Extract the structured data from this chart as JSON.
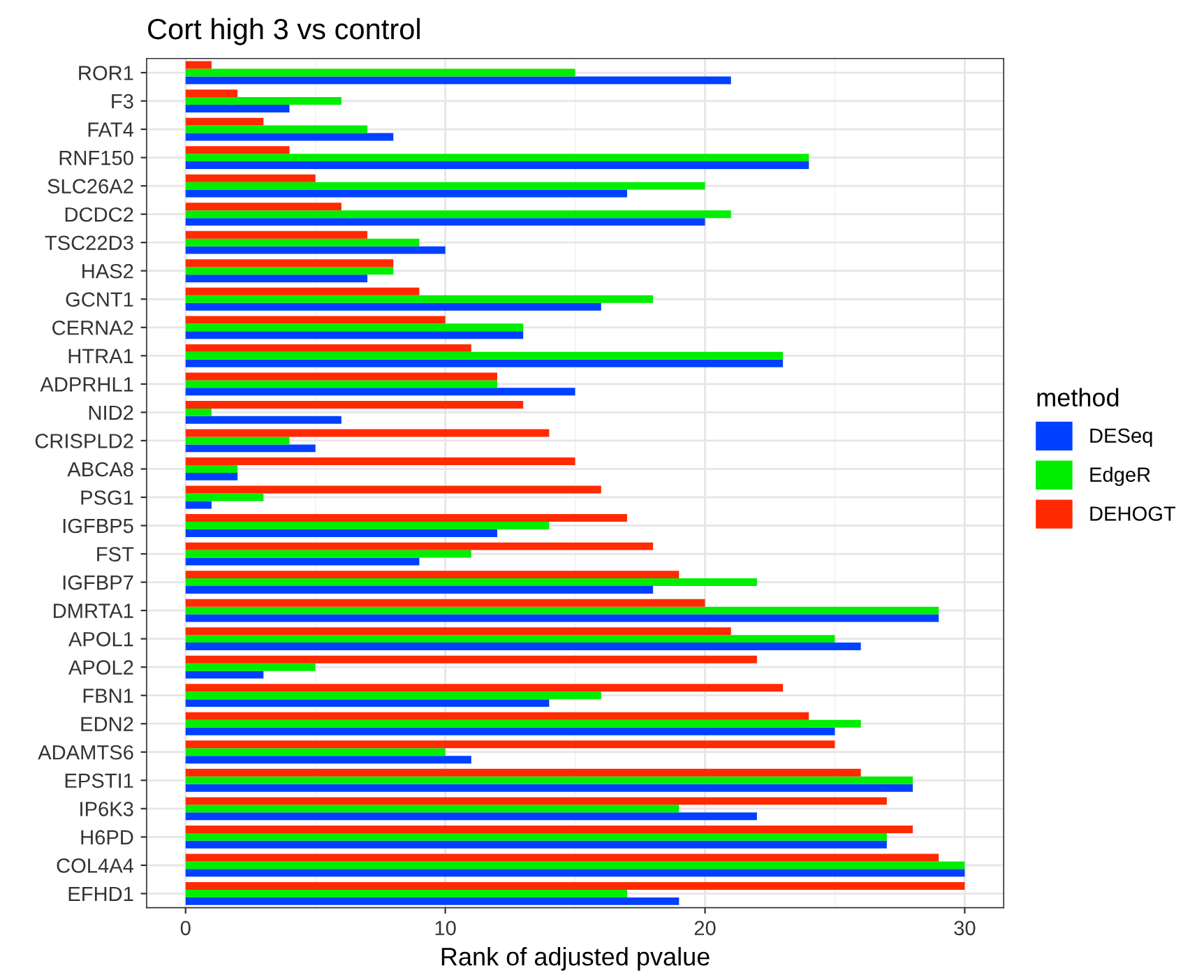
{
  "chart_data": {
    "type": "bar",
    "orientation": "horizontal",
    "title": "Cort high 3 vs control",
    "xlabel": "Rank of adjusted pvalue",
    "legend_title": "method",
    "legend": "right",
    "grid": true,
    "categories": [
      "ROR1",
      "F3",
      "FAT4",
      "RNF150",
      "SLC26A2",
      "DCDC2",
      "TSC22D3",
      "HAS2",
      "GCNT1",
      "CERNA2",
      "HTRA1",
      "ADPRHL1",
      "NID2",
      "CRISPLD2",
      "ABCA8",
      "PSG1",
      "IGFBP5",
      "FST",
      "IGFBP7",
      "DMRTA1",
      "APOL1",
      "APOL2",
      "FBN1",
      "EDN2",
      "ADAMTS6",
      "EPSTI1",
      "IP6K3",
      "H6PD",
      "COL4A4",
      "EFHD1"
    ],
    "series": [
      {
        "name": "DESeq",
        "color": "#0040ff",
        "values": [
          21,
          4,
          8,
          24,
          17,
          20,
          10,
          7,
          16,
          13,
          23,
          15,
          6,
          5,
          2,
          1,
          12,
          9,
          18,
          29,
          26,
          3,
          14,
          25,
          11,
          28,
          22,
          27,
          30,
          19
        ]
      },
      {
        "name": "EdgeR",
        "color": "#00ee00",
        "values": [
          15,
          6,
          7,
          24,
          20,
          21,
          9,
          8,
          18,
          13,
          23,
          12,
          1,
          4,
          2,
          3,
          14,
          11,
          22,
          29,
          25,
          5,
          16,
          26,
          10,
          28,
          19,
          27,
          30,
          17
        ]
      },
      {
        "name": "DEHOGT",
        "color": "#ff2a00",
        "values": [
          1,
          2,
          3,
          4,
          5,
          6,
          7,
          8,
          9,
          10,
          11,
          12,
          13,
          14,
          15,
          16,
          17,
          18,
          19,
          20,
          21,
          22,
          23,
          24,
          25,
          26,
          27,
          28,
          29,
          30
        ]
      }
    ],
    "xlim": [
      -1.5,
      31.5
    ],
    "xticks": [
      0,
      10,
      20,
      30
    ]
  }
}
